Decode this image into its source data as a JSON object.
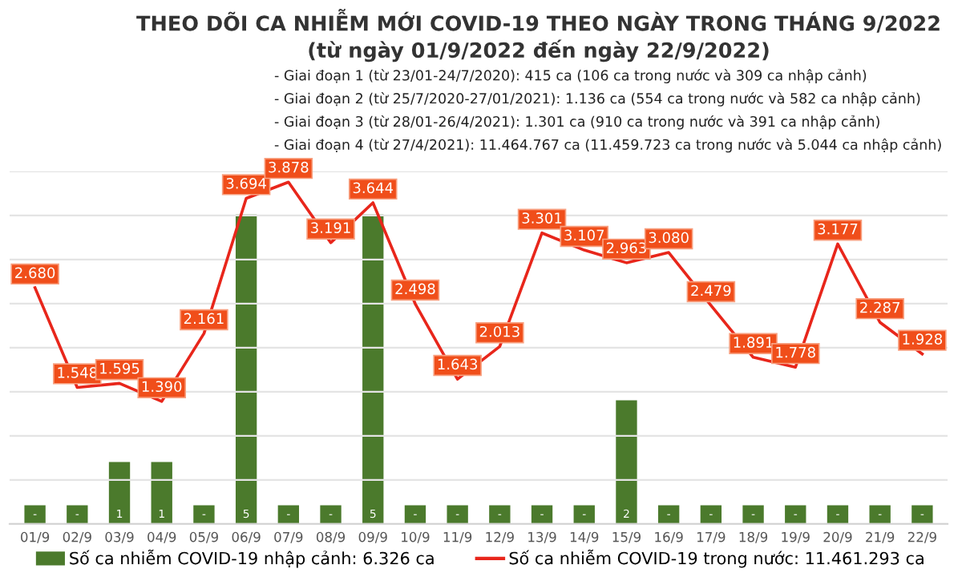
{
  "chart_data": {
    "type": "bar",
    "title": "THEO DÕI CA NHIỄM MỚI COVID-19 THEO NGÀY TRONG THÁNG 9/2022",
    "subtitle": "(từ ngày 01/9/2022 đến ngày 22/9/2022)",
    "annotations": [
      "- Giai đoạn 1 (từ 23/01-24/7/2020): 415 ca (106 ca trong nước và 309 ca nhập cảnh)",
      "- Giai đoạn 2 (từ 25/7/2020-27/01/2021): 1.136 ca (554 ca trong nước và 582 ca nhập cảnh)",
      "- Giai đoạn 3 (từ 28/01-26/4/2021): 1.301 ca (910 ca trong nước và 391 ca nhập cảnh)",
      "- Giai đoạn 4 (từ 27/4/2021): 11.464.767 ca (11.459.723 ca trong nước và 5.044 ca nhập cảnh)"
    ],
    "categories": [
      "01/9",
      "02/9",
      "03/9",
      "04/9",
      "05/9",
      "06/9",
      "07/9",
      "08/9",
      "09/9",
      "10/9",
      "11/9",
      "12/9",
      "13/9",
      "14/9",
      "15/9",
      "16/9",
      "17/9",
      "18/9",
      "19/9",
      "20/9",
      "21/9",
      "22/9"
    ],
    "series": [
      {
        "name": "Số ca nhiễm COVID-19 nhập cảnh: 6.326 ca",
        "axis": "y2",
        "color": "#4b7a2c",
        "values": [
          0.3,
          0.3,
          1,
          1,
          0.3,
          5,
          0.3,
          0.3,
          5,
          0.3,
          0.3,
          0.3,
          0.3,
          0.3,
          2,
          0.3,
          0.3,
          0.3,
          0.3,
          0.3,
          0.3,
          0.3
        ],
        "value_labels": [
          "-",
          "-",
          "1",
          "1",
          "-",
          "5",
          "-",
          "-",
          "5",
          "-",
          "-",
          "-",
          "-",
          "-",
          "2",
          "-",
          "-",
          "-",
          "-",
          "-",
          "-",
          "-"
        ]
      },
      {
        "name": "Số ca nhiễm COVID-19 trong nước: 11.461.293 ca",
        "type": "line",
        "color": "#e8261b",
        "values": [
          2680,
          1548,
          1595,
          1390,
          2161,
          3694,
          3878,
          3191,
          3644,
          2498,
          1643,
          2013,
          3301,
          3107,
          2963,
          3080,
          2479,
          1891,
          1778,
          3177,
          2287,
          1928
        ],
        "value_labels": [
          "2.680",
          "1.548",
          "1.595",
          "1.390",
          "2.161",
          "3.694",
          "3.878",
          "3.191",
          "3.644",
          "2.498",
          "1.643",
          "2.013",
          "3.301",
          "3.107",
          "2.963",
          "3.080",
          "2.479",
          "1.891",
          "1.778",
          "3.177",
          "2.287",
          "1.928"
        ]
      }
    ],
    "ylim": [
      0,
      4000
    ],
    "yticks": [
      {
        "value": 0,
        "label": null
      },
      {
        "value": 500,
        "label": null
      },
      {
        "value": 1000,
        "label": null
      },
      {
        "value": 1500,
        "label": null
      },
      {
        "value": 2000,
        "label": null
      },
      {
        "value": 2500,
        "label": null
      },
      {
        "value": 3000,
        "label": null
      },
      {
        "value": 3500,
        "label": null
      },
      {
        "value": 4000,
        "label": null
      }
    ],
    "y2lim": [
      0,
      5.7
    ],
    "tick_labels": "x",
    "grid": "y",
    "legend": "bottom"
  }
}
